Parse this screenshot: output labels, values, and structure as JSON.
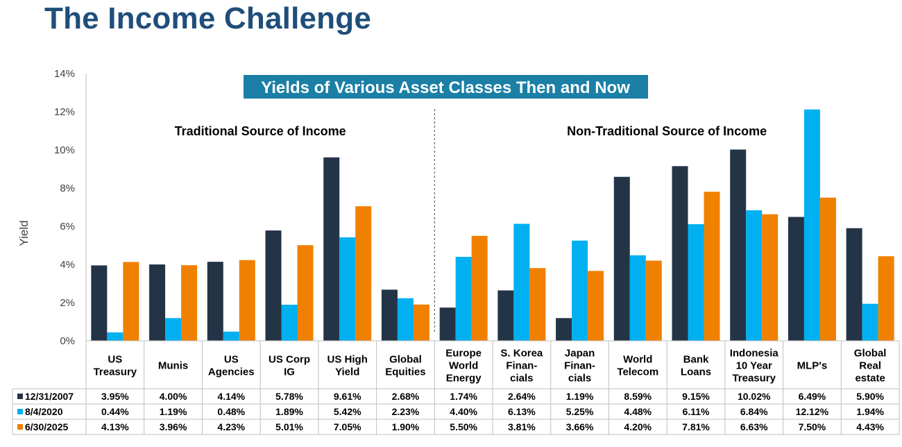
{
  "page": {
    "title": "The Income Challenge"
  },
  "colors": {
    "series": [
      "#243447",
      "#00b0f0",
      "#f08000"
    ],
    "banner_bg": "#1b7fa6",
    "title": "#1f4e79",
    "axis_text": "#404040",
    "grid_border": "#bfbfbf"
  },
  "chart_data": {
    "type": "bar",
    "title": "Yields of Various Asset Classes Then and Now",
    "ylabel": "Yield",
    "xlabel": "",
    "ylim": [
      0,
      14
    ],
    "yticks": [
      "0%",
      "2%",
      "4%",
      "6%",
      "8%",
      "10%",
      "12%",
      "14%"
    ],
    "grid": false,
    "legend": "table-below",
    "groups": [
      {
        "label": "Traditional Source of Income",
        "start": 0,
        "end": 5
      },
      {
        "label": "Non-Traditional Source of Income",
        "start": 6,
        "end": 13
      }
    ],
    "categories": [
      [
        "US",
        "Treasury"
      ],
      [
        "Munis"
      ],
      [
        "US",
        "Agencies"
      ],
      [
        "US Corp",
        "IG"
      ],
      [
        "US High",
        "Yield"
      ],
      [
        "Global",
        "Equities"
      ],
      [
        "Europe",
        "World",
        "Energy"
      ],
      [
        "S. Korea",
        "Finan-",
        "cials"
      ],
      [
        "Japan",
        "Finan-",
        "cials"
      ],
      [
        "World",
        "Telecom"
      ],
      [
        "Bank",
        "Loans"
      ],
      [
        "Indonesia",
        "10 Year",
        "Treasury"
      ],
      [
        "MLP's"
      ],
      [
        "Global",
        "Real",
        "estate"
      ]
    ],
    "series": [
      {
        "name": "12/31/2007",
        "values": [
          3.95,
          4.0,
          4.14,
          5.78,
          9.61,
          2.68,
          1.74,
          2.64,
          1.19,
          8.59,
          9.15,
          10.02,
          6.49,
          5.9
        ],
        "labels": [
          "3.95%",
          "4.00%",
          "4.14%",
          "5.78%",
          "9.61%",
          "2.68%",
          "1.74%",
          "2.64%",
          "1.19%",
          "8.59%",
          "9.15%",
          "10.02%",
          "6.49%",
          "5.90%"
        ]
      },
      {
        "name": "8/4/2020",
        "values": [
          0.44,
          1.19,
          0.48,
          1.89,
          5.42,
          2.23,
          4.4,
          6.13,
          5.25,
          4.48,
          6.11,
          6.84,
          12.12,
          1.94
        ],
        "labels": [
          "0.44%",
          "1.19%",
          "0.48%",
          "1.89%",
          "5.42%",
          "2.23%",
          "4.40%",
          "6.13%",
          "5.25%",
          "4.48%",
          "6.11%",
          "6.84%",
          "12.12%",
          "1.94%"
        ]
      },
      {
        "name": "6/30/2025",
        "values": [
          4.13,
          3.96,
          4.23,
          5.01,
          7.05,
          1.9,
          5.5,
          3.81,
          3.66,
          4.2,
          7.81,
          6.63,
          7.5,
          4.43
        ],
        "labels": [
          "4.13%",
          "3.96%",
          "4.23%",
          "5.01%",
          "7.05%",
          "1.90%",
          "5.50%",
          "3.81%",
          "3.66%",
          "4.20%",
          "7.81%",
          "6.63%",
          "7.50%",
          "4.43%"
        ]
      }
    ]
  }
}
